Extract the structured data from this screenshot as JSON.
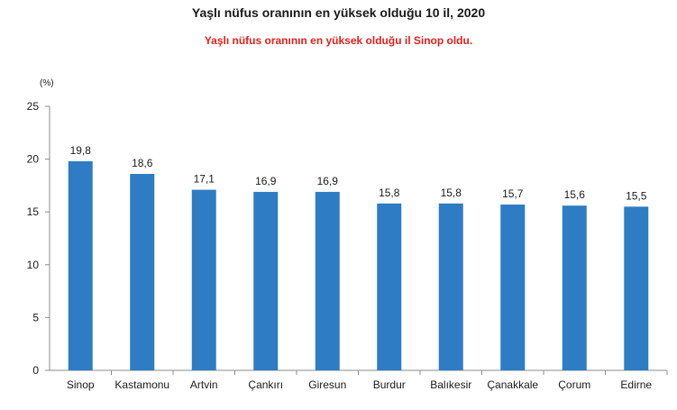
{
  "chart_data": {
    "type": "bar",
    "title": "Yaşlı nüfus oranının en yüksek olduğu 10 il, 2020",
    "subtitle": "Yaşlı nüfus oranının en yüksek olduğu il Sinop oldu.",
    "ylabel": "(%)",
    "xlabel": "",
    "categories": [
      "Sinop",
      "Kastamonu",
      "Artvin",
      "Çankırı",
      "Giresun",
      "Burdur",
      "Balıkesir",
      "Çanakkale",
      "Çorum",
      "Edirne"
    ],
    "values": [
      19.8,
      18.6,
      17.1,
      16.9,
      16.9,
      15.8,
      15.8,
      15.7,
      15.6,
      15.5
    ],
    "value_labels": [
      "19,8",
      "18,6",
      "17,1",
      "16,9",
      "16,9",
      "15,8",
      "15,8",
      "15,7",
      "15,6",
      "15,5"
    ],
    "ylim": [
      0,
      25
    ],
    "yticks": [
      0,
      5,
      10,
      15,
      20,
      25
    ],
    "grid": false,
    "legend": "none",
    "bar_color": "#2e7cc4"
  }
}
